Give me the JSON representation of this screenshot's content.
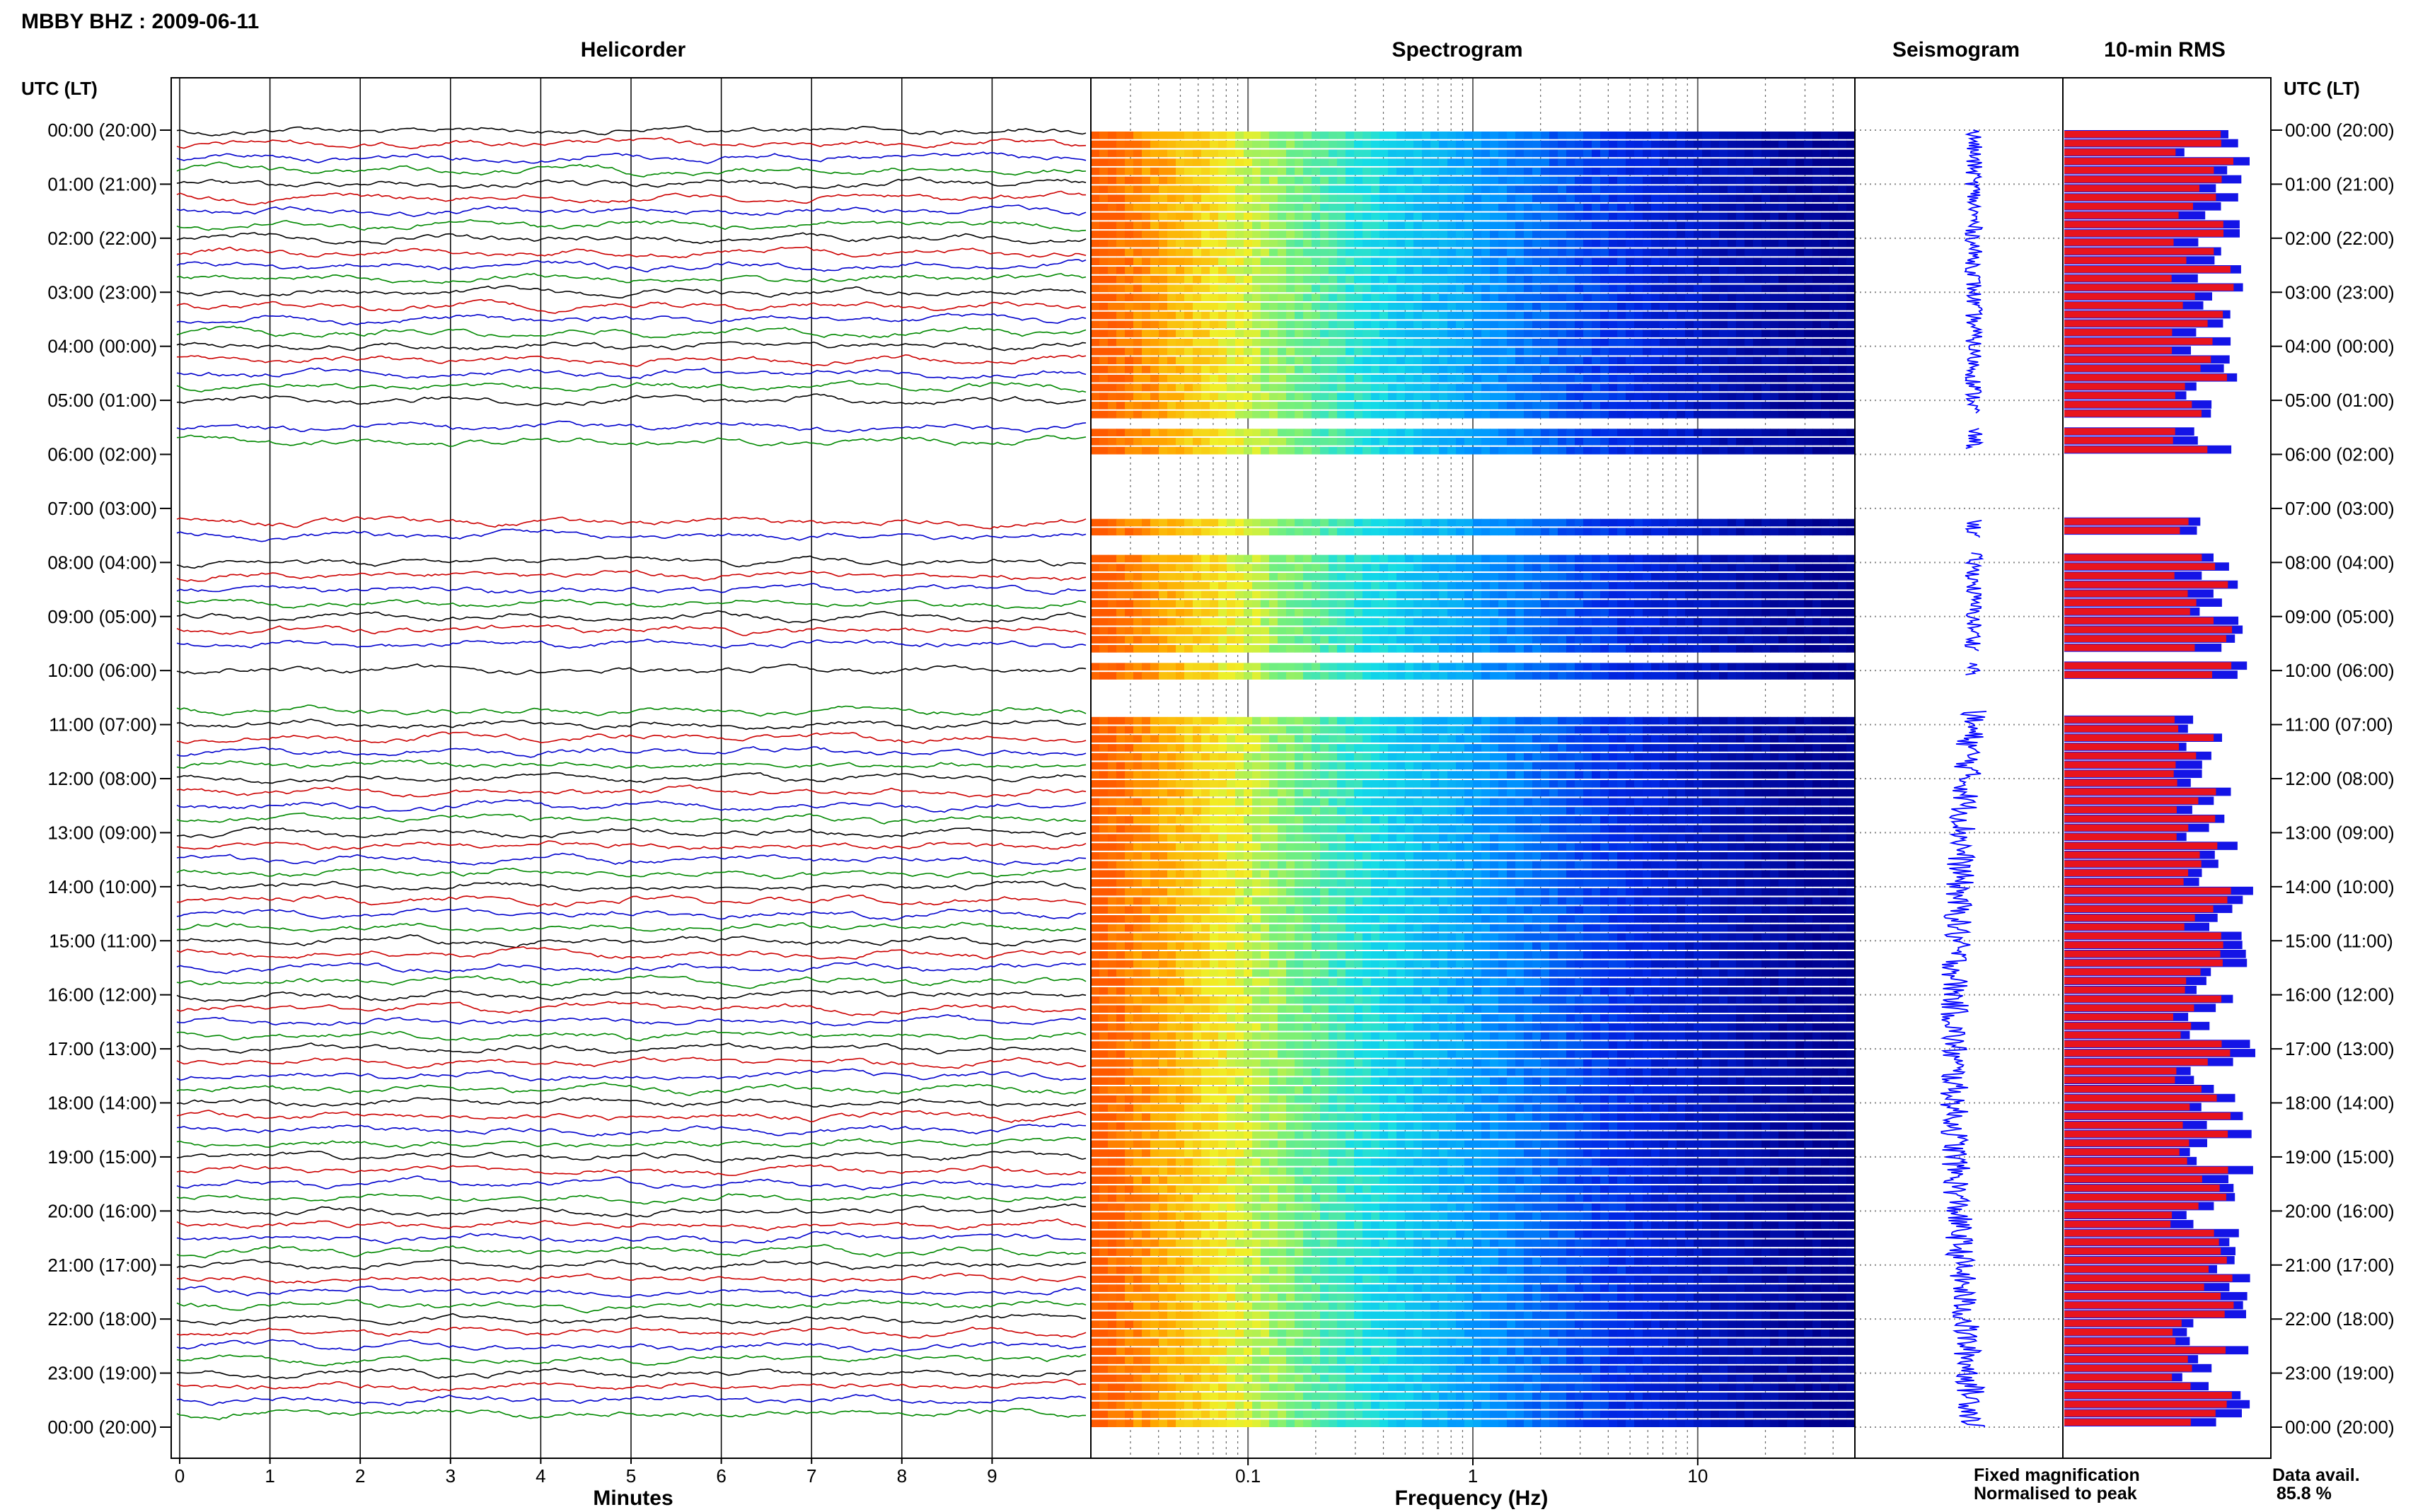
{
  "header": {
    "title": "MBBY BHZ : 2009-06-11"
  },
  "panels": {
    "helicorder": {
      "title": "Helicorder",
      "xlabel": "Minutes"
    },
    "spectrogram": {
      "title": "Spectrogram",
      "xlabel": "Frequency (Hz)"
    },
    "seismogram": {
      "title": "Seismogram"
    },
    "rms": {
      "title": "10-min RMS"
    }
  },
  "axis": {
    "time_label_left": "UTC (LT)",
    "time_label_right": "UTC (LT)",
    "time_ticks": [
      "00:00 (20:00)",
      "01:00 (21:00)",
      "02:00 (22:00)",
      "03:00 (23:00)",
      "04:00 (00:00)",
      "05:00 (01:00)",
      "06:00 (02:00)",
      "07:00 (03:00)",
      "08:00 (04:00)",
      "09:00 (05:00)",
      "10:00 (06:00)",
      "11:00 (07:00)",
      "12:00 (08:00)",
      "13:00 (09:00)",
      "14:00 (10:00)",
      "15:00 (11:00)",
      "16:00 (12:00)",
      "17:00 (13:00)",
      "18:00 (14:00)",
      "19:00 (15:00)",
      "20:00 (16:00)",
      "21:00 (17:00)",
      "22:00 (18:00)",
      "23:00 (19:00)",
      "00:00 (20:00)"
    ],
    "minute_ticks": [
      "0",
      "1",
      "2",
      "3",
      "4",
      "5",
      "6",
      "7",
      "8",
      "9"
    ],
    "freq_ticks": [
      "0.1",
      "1",
      "10"
    ]
  },
  "legend": {
    "fixed_label": "Fixed magnification",
    "fixed_color": "#0000ff",
    "normalised_label": "Normalised to peak",
    "normalised_color": "#ff0000"
  },
  "availability": {
    "label": "Data avail.",
    "value": "85.8 %"
  },
  "colors": {
    "trace_cycle": [
      "#000000",
      "#cc0000",
      "#0000cc",
      "#008800"
    ],
    "rms_red": "#e8141e",
    "rms_blue": "#1414e6"
  },
  "chart_data": {
    "type": "heatmap",
    "date": "2009-06-11",
    "station": "MBBY BHZ",
    "time_range_hours": [
      0,
      24
    ],
    "helicorder_minutes_range": [
      0,
      10
    ],
    "spectrogram_freq_range_hz": [
      0.02,
      50
    ],
    "spectrogram_freq_scale": "log",
    "gap_intervals_utc_hours": [
      [
        5.25,
        5.5
      ],
      [
        5.9,
        7.2
      ],
      [
        7.55,
        7.8
      ],
      [
        9.65,
        9.85
      ],
      [
        10.1,
        10.75
      ]
    ],
    "rms_10min_blocks_count": 144
  }
}
